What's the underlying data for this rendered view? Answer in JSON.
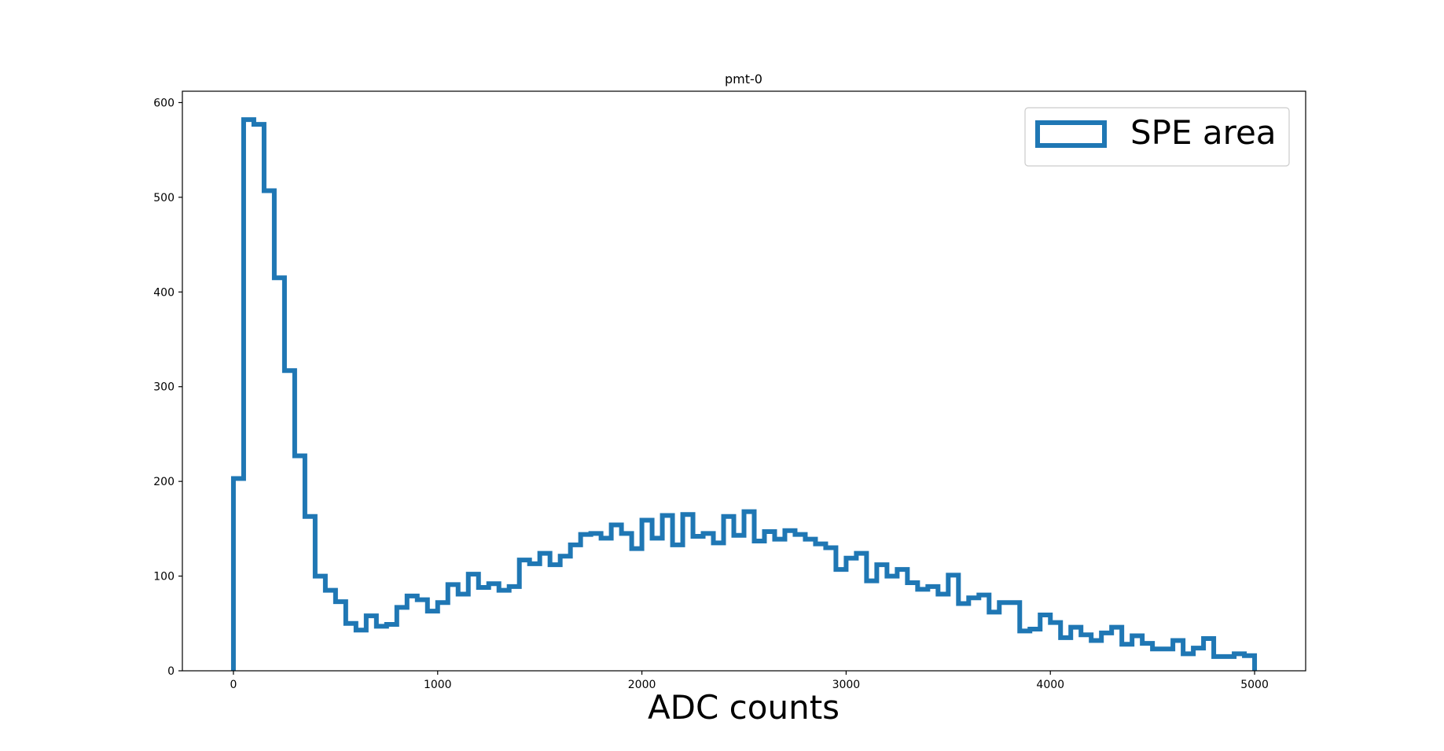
{
  "chart_data": {
    "type": "histogram",
    "title": "pmt-0",
    "xlabel": "ADC counts",
    "ylabel": "",
    "xlim": [
      -250,
      5250
    ],
    "ylim": [
      0,
      612
    ],
    "x_ticks": [
      0,
      1000,
      2000,
      3000,
      4000,
      5000
    ],
    "y_ticks": [
      0,
      100,
      200,
      300,
      400,
      500,
      600
    ],
    "grid": false,
    "legend_position": "top-right",
    "histtype": "step",
    "bin_edges_start": 0,
    "bin_width": 50,
    "series": [
      {
        "name": "SPE area",
        "color": "#1f77b4",
        "values": [
          203,
          582,
          577,
          507,
          415,
          317,
          227,
          163,
          100,
          85,
          73,
          50,
          43,
          58,
          47,
          49,
          67,
          79,
          75,
          63,
          72,
          91,
          81,
          102,
          88,
          92,
          85,
          89,
          117,
          113,
          124,
          112,
          121,
          133,
          144,
          145,
          140,
          154,
          145,
          129,
          159,
          140,
          164,
          133,
          165,
          142,
          145,
          135,
          163,
          143,
          168,
          137,
          147,
          139,
          148,
          144,
          139,
          134,
          130,
          107,
          119,
          124,
          95,
          112,
          100,
          107,
          93,
          86,
          89,
          81,
          101,
          71,
          77,
          80,
          62,
          72,
          72,
          42,
          44,
          59,
          51,
          35,
          46,
          38,
          32,
          40,
          46,
          28,
          37,
          29,
          23,
          23,
          32,
          18,
          24,
          34,
          15,
          15,
          18,
          16
        ]
      }
    ]
  }
}
